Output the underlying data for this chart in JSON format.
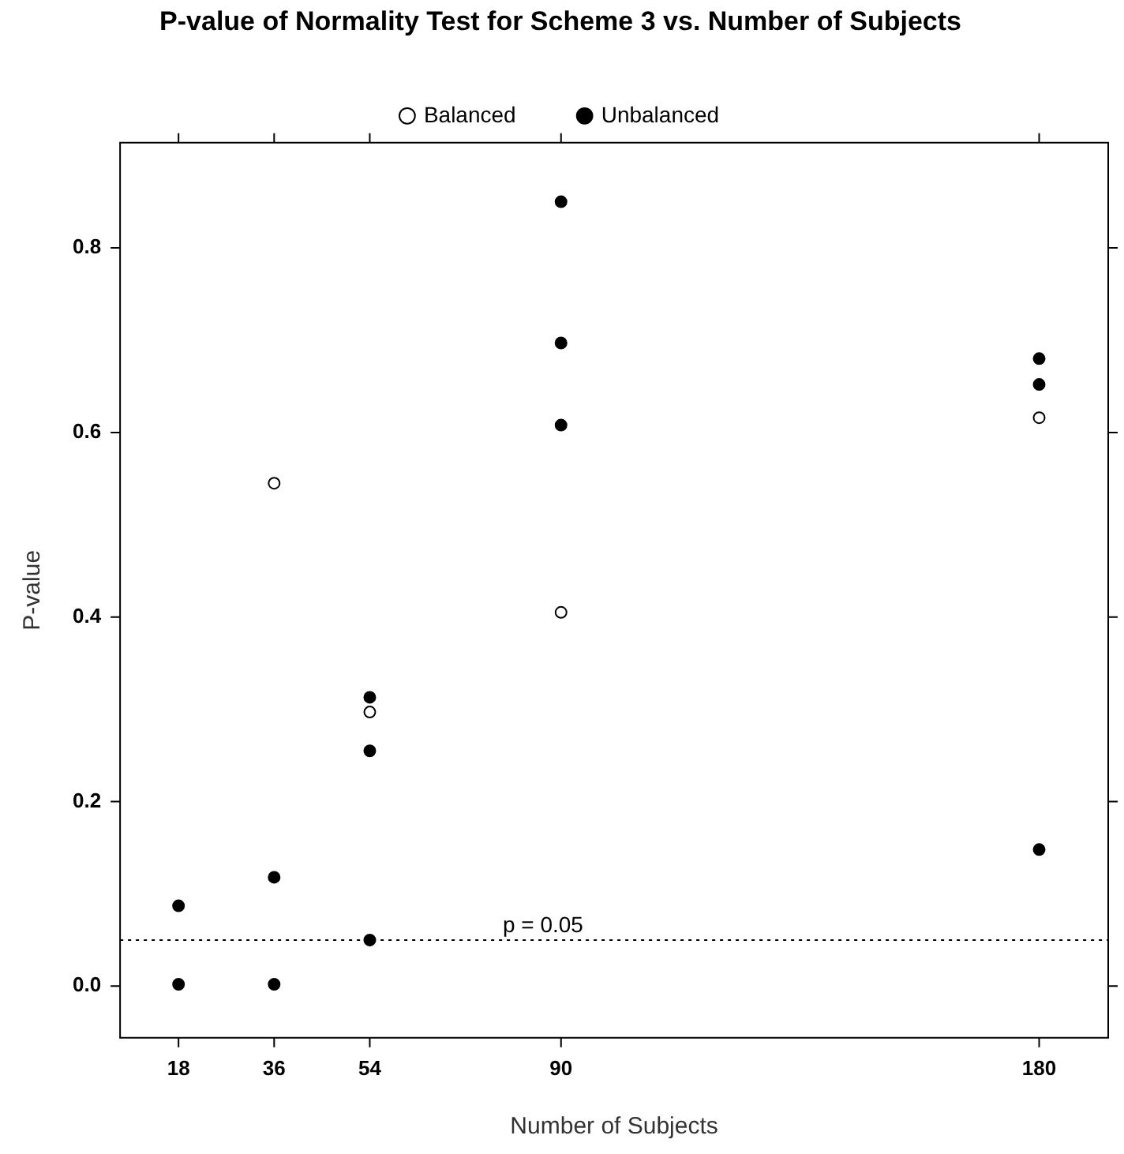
{
  "chart_data": {
    "type": "scatter",
    "title": "P-value of Normality Test for Scheme 3 vs. Number of Subjects",
    "xlabel": "Number of Subjects",
    "ylabel": "P-value",
    "series": [
      {
        "name": "Balanced",
        "color": "#000000",
        "marker": "open-circle",
        "x": [
          36,
          54,
          90,
          180
        ],
        "values": [
          0.545,
          0.297,
          0.405,
          0.616
        ]
      },
      {
        "name": "Unbalanced",
        "color": "#000000",
        "marker": "circle",
        "x": [
          18,
          18,
          36,
          36,
          54,
          54,
          54,
          90,
          90,
          90,
          180,
          180,
          180
        ],
        "values": [
          0.087,
          0.002,
          0.118,
          0.002,
          0.313,
          0.255,
          0.05,
          0.85,
          0.697,
          0.608,
          0.68,
          0.652,
          0.148
        ]
      }
    ],
    "xlim": [
      7,
      193
    ],
    "xticks": [
      18,
      36,
      54,
      90,
      180
    ],
    "ylim": [
      -0.056,
      0.914
    ],
    "yticks": [
      {
        "value": 0,
        "label": "0.0"
      },
      {
        "value": 0.2,
        "label": "0.2"
      },
      {
        "value": 0.4,
        "label": "0.4"
      },
      {
        "value": 0.6,
        "label": "0.6"
      },
      {
        "value": 0.8,
        "label": "0.8"
      }
    ],
    "ref_lines": [
      {
        "axis": "y",
        "value": 0.05,
        "label": "p = 0.05",
        "line_style": "dotted"
      }
    ],
    "grid": false,
    "legend": "top"
  }
}
